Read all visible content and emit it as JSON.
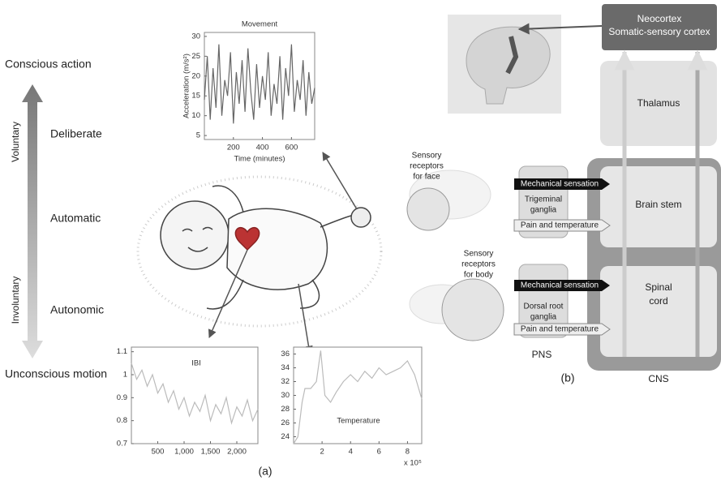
{
  "scale": {
    "top": "Conscious action",
    "bottom": "Unconscious motion",
    "upper": "Voluntary",
    "lower": "Involuntary",
    "levels": [
      "Deliberate",
      "Automatic",
      "Autonomic"
    ]
  },
  "panel_a_label": "(a)",
  "chart_data": [
    {
      "type": "line",
      "title": "Movement",
      "x_label": "Time (minutes)",
      "y_label": "Acceleration (m/s²)",
      "x": [
        0,
        20,
        40,
        60,
        80,
        100,
        120,
        140,
        160,
        180,
        200,
        220,
        240,
        260,
        280,
        300,
        320,
        340,
        360,
        380,
        400,
        420,
        440,
        460,
        480,
        500,
        520,
        540,
        560,
        580,
        600,
        620,
        640,
        660,
        680,
        700,
        720,
        740,
        760
      ],
      "values": [
        14,
        25,
        9,
        22,
        12,
        28,
        10,
        19,
        15,
        26,
        8,
        21,
        13,
        24,
        11,
        27,
        16,
        9,
        23,
        12,
        20,
        14,
        26,
        10,
        18,
        13,
        25,
        9,
        22,
        15,
        28,
        11,
        19,
        14,
        24,
        10,
        21,
        13,
        17
      ],
      "color": "#666666",
      "xlim": [
        0,
        760
      ],
      "ylim": [
        4,
        31
      ],
      "xticks": [
        200,
        400,
        600
      ],
      "yticks": [
        5,
        10,
        15,
        20,
        25,
        30
      ]
    },
    {
      "type": "line",
      "annotation": "IBI",
      "x": [
        0,
        100,
        200,
        300,
        400,
        500,
        600,
        700,
        800,
        900,
        1000,
        1100,
        1200,
        1300,
        1400,
        1500,
        1600,
        1700,
        1800,
        1900,
        2000,
        2100,
        2200,
        2300,
        2400
      ],
      "values": [
        1.05,
        0.98,
        1.02,
        0.95,
        1.0,
        0.92,
        0.96,
        0.88,
        0.93,
        0.85,
        0.9,
        0.82,
        0.88,
        0.84,
        0.91,
        0.8,
        0.87,
        0.83,
        0.9,
        0.79,
        0.86,
        0.82,
        0.89,
        0.8,
        0.85
      ],
      "color": "#bbbbbb",
      "xlim": [
        0,
        2400
      ],
      "ylim": [
        0.7,
        1.12
      ],
      "xticks": [
        500,
        {
          "value": 1000,
          "label": "1,000"
        },
        {
          "value": 1500,
          "label": "1,500"
        },
        {
          "value": 2000,
          "label": "2,000"
        }
      ],
      "yticks": [
        0.7,
        0.8,
        0.9,
        1,
        1.1
      ]
    },
    {
      "type": "line",
      "annotation": "Temperature",
      "x_multiplier": "x 10⁵",
      "x": [
        0,
        0.3,
        0.6,
        0.8,
        1.2,
        1.6,
        1.9,
        2.2,
        2.6,
        3,
        3.5,
        4,
        4.5,
        5,
        5.5,
        6,
        6.5,
        7,
        7.5,
        8,
        8.5,
        9
      ],
      "values": [
        23,
        24,
        29,
        31,
        31,
        32,
        36.5,
        30,
        29,
        30.5,
        32,
        33,
        32,
        33.5,
        32.5,
        34,
        33,
        33.5,
        34,
        35,
        33,
        29.5
      ],
      "color": "#bbbbbb",
      "xlim": [
        0,
        9
      ],
      "ylim": [
        23,
        37
      ],
      "xticks": [
        2,
        4,
        6,
        8
      ],
      "yticks": [
        24,
        26,
        28,
        30,
        32,
        34,
        36
      ]
    }
  ],
  "panel_b": {
    "label": "(b)",
    "neocortex": [
      "Neocortex",
      "Somatic-sensory cortex"
    ],
    "thalamus": "Thalamus",
    "brain_stem": "Brain stem",
    "spinal_cord": [
      "Spinal",
      "cord"
    ],
    "cns": "CNS",
    "pns": "PNS",
    "trigeminal": [
      "Trigeminal",
      "ganglia"
    ],
    "dorsal_root": [
      "Dorsal root",
      "ganglia"
    ],
    "face_receptors": [
      "Sensory",
      "receptors",
      "for face"
    ],
    "body_receptors": [
      "Sensory",
      "receptors",
      "for body"
    ],
    "signals": [
      "Mechanical sensation",
      "Pain and temperature"
    ]
  }
}
